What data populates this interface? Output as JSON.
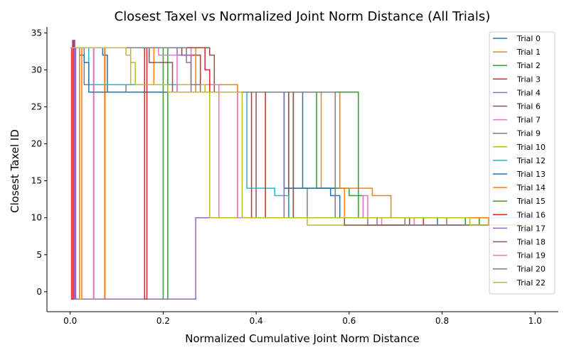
{
  "chart_data": {
    "type": "line",
    "title": "Closest Taxel vs Normalized Joint Norm Distance (All Trials)",
    "xlabel": "Normalized Cumulative Joint Norm Distance",
    "ylabel": "Closest Taxel ID",
    "xlim": [
      -0.05,
      1.05
    ],
    "ylim": [
      -2.7,
      35.8
    ],
    "xticks": [
      0.0,
      0.2,
      0.4,
      0.6,
      0.8,
      1.0
    ],
    "xtick_labels": [
      "0.0",
      "0.2",
      "0.4",
      "0.6",
      "0.8",
      "1.0"
    ],
    "yticks": [
      0,
      5,
      10,
      15,
      20,
      25,
      30,
      35
    ],
    "ytick_labels": [
      "0",
      "5",
      "10",
      "15",
      "20",
      "25",
      "30",
      "35"
    ],
    "grid": false,
    "legend_position": "top-right",
    "series": [
      {
        "name": "Trial 0",
        "color": "#1f77b4",
        "points": [
          [
            0,
            33
          ],
          [
            0.07,
            33
          ],
          [
            0.07,
            32
          ],
          [
            0.08,
            32
          ],
          [
            0.08,
            27
          ],
          [
            0.5,
            27
          ],
          [
            0.5,
            14
          ],
          [
            0.56,
            14
          ],
          [
            0.56,
            13
          ],
          [
            0.58,
            13
          ],
          [
            0.58,
            10
          ],
          [
            0.85,
            10
          ],
          [
            0.85,
            9
          ],
          [
            1.0,
            9
          ]
        ]
      },
      {
        "name": "Trial 1",
        "color": "#ff7f0e",
        "points": [
          [
            0,
            33
          ],
          [
            0.074,
            33
          ],
          [
            0.074,
            -1
          ],
          [
            0.075,
            -1
          ],
          [
            0.075,
            33
          ],
          [
            0.18,
            33
          ],
          [
            0.18,
            28
          ],
          [
            0.36,
            28
          ],
          [
            0.36,
            10
          ],
          [
            0.47,
            10
          ],
          [
            0.47,
            27
          ],
          [
            0.54,
            27
          ],
          [
            0.54,
            14
          ],
          [
            0.59,
            14
          ],
          [
            0.59,
            10
          ],
          [
            1.0,
            10
          ]
        ]
      },
      {
        "name": "Trial 2",
        "color": "#2ca02c",
        "points": [
          [
            0,
            33
          ],
          [
            0.2,
            33
          ],
          [
            0.2,
            -1
          ],
          [
            0.21,
            -1
          ],
          [
            0.21,
            27
          ],
          [
            0.53,
            27
          ],
          [
            0.53,
            14
          ],
          [
            0.6,
            14
          ],
          [
            0.6,
            13
          ],
          [
            0.63,
            13
          ],
          [
            0.63,
            10
          ],
          [
            0.88,
            10
          ],
          [
            0.88,
            9
          ],
          [
            1.0,
            9
          ]
        ]
      },
      {
        "name": "Trial 3",
        "color": "#d62728",
        "points": [
          [
            0,
            33
          ],
          [
            0.003,
            33
          ],
          [
            0.003,
            -1
          ],
          [
            0.006,
            -1
          ],
          [
            0.006,
            34
          ],
          [
            0.008,
            34
          ],
          [
            0.008,
            33
          ],
          [
            0.24,
            33
          ],
          [
            0.24,
            32
          ],
          [
            0.28,
            32
          ],
          [
            0.28,
            27
          ],
          [
            0.39,
            27
          ],
          [
            0.39,
            10
          ],
          [
            1.0,
            10
          ]
        ]
      },
      {
        "name": "Trial 4",
        "color": "#9467bd",
        "points": [
          [
            0,
            33
          ],
          [
            0.005,
            33
          ],
          [
            0.005,
            34
          ],
          [
            0.01,
            34
          ],
          [
            0.01,
            -1
          ],
          [
            0.27,
            -1
          ],
          [
            0.27,
            10
          ],
          [
            0.66,
            10
          ],
          [
            0.66,
            9
          ],
          [
            1.0,
            9
          ]
        ]
      },
      {
        "name": "Trial 6",
        "color": "#8c564b",
        "points": [
          [
            0,
            33
          ],
          [
            0.3,
            33
          ],
          [
            0.3,
            32
          ],
          [
            0.31,
            32
          ],
          [
            0.31,
            27
          ],
          [
            0.4,
            27
          ],
          [
            0.4,
            10
          ],
          [
            0.47,
            10
          ],
          [
            0.47,
            27
          ],
          [
            0.48,
            27
          ],
          [
            0.48,
            10
          ],
          [
            0.73,
            10
          ],
          [
            0.73,
            9
          ],
          [
            1.0,
            9
          ]
        ]
      },
      {
        "name": "Trial 7",
        "color": "#e377c2",
        "points": [
          [
            0,
            33
          ],
          [
            0.05,
            33
          ],
          [
            0.05,
            -1
          ],
          [
            0.051,
            -1
          ],
          [
            0.051,
            33
          ],
          [
            0.26,
            33
          ],
          [
            0.26,
            28
          ],
          [
            0.32,
            28
          ],
          [
            0.32,
            10
          ],
          [
            0.67,
            10
          ],
          [
            0.67,
            9
          ],
          [
            1.0,
            9
          ]
        ]
      },
      {
        "name": "Trial 9",
        "color": "#7f7f7f",
        "points": [
          [
            0,
            33
          ],
          [
            0.03,
            33
          ],
          [
            0.03,
            28
          ],
          [
            0.12,
            28
          ],
          [
            0.12,
            27
          ],
          [
            0.33,
            27
          ],
          [
            0.33,
            27
          ],
          [
            0.46,
            27
          ],
          [
            0.46,
            14
          ],
          [
            0.51,
            14
          ],
          [
            0.51,
            10
          ],
          [
            0.81,
            10
          ],
          [
            0.81,
            9
          ],
          [
            1.0,
            9
          ]
        ]
      },
      {
        "name": "Trial 10",
        "color": "#bcbd22",
        "points": [
          [
            0,
            33
          ],
          [
            0.13,
            33
          ],
          [
            0.13,
            28
          ],
          [
            0.29,
            28
          ],
          [
            0.29,
            27
          ],
          [
            0.3,
            27
          ],
          [
            0.3,
            10
          ],
          [
            0.51,
            10
          ],
          [
            0.51,
            9
          ],
          [
            1.0,
            9
          ]
        ]
      },
      {
        "name": "Trial 12",
        "color": "#17becf",
        "points": [
          [
            0,
            33
          ],
          [
            0.04,
            33
          ],
          [
            0.04,
            28
          ],
          [
            0.23,
            28
          ],
          [
            0.23,
            27
          ],
          [
            0.38,
            27
          ],
          [
            0.38,
            14
          ],
          [
            0.44,
            14
          ],
          [
            0.44,
            13
          ],
          [
            0.47,
            13
          ],
          [
            0.47,
            10
          ],
          [
            0.55,
            10
          ],
          [
            1.0,
            10
          ]
        ]
      },
      {
        "name": "Trial 13",
        "color": "#1f77b4",
        "points": [
          [
            0,
            33
          ],
          [
            0.02,
            33
          ],
          [
            0.02,
            32
          ],
          [
            0.03,
            32
          ],
          [
            0.03,
            31
          ],
          [
            0.04,
            31
          ],
          [
            0.04,
            27
          ],
          [
            0.46,
            27
          ],
          [
            0.46,
            14
          ],
          [
            0.57,
            14
          ],
          [
            0.57,
            10
          ],
          [
            0.79,
            10
          ],
          [
            0.79,
            9
          ],
          [
            1.0,
            9
          ]
        ]
      },
      {
        "name": "Trial 14",
        "color": "#ff7f0e",
        "points": [
          [
            0,
            33
          ],
          [
            0.02,
            33
          ],
          [
            0.02,
            -1
          ],
          [
            0.025,
            -1
          ],
          [
            0.025,
            33
          ],
          [
            0.27,
            33
          ],
          [
            0.27,
            27
          ],
          [
            0.58,
            27
          ],
          [
            0.58,
            14
          ],
          [
            0.65,
            14
          ],
          [
            0.65,
            13
          ],
          [
            0.69,
            13
          ],
          [
            0.69,
            10
          ],
          [
            0.9,
            10
          ],
          [
            0.9,
            9
          ],
          [
            1.0,
            9
          ]
        ]
      },
      {
        "name": "Trial 15",
        "color": "#2ca02c",
        "points": [
          [
            0,
            33
          ],
          [
            0.21,
            33
          ],
          [
            0.21,
            27
          ],
          [
            0.62,
            27
          ],
          [
            0.62,
            10
          ],
          [
            0.85,
            10
          ],
          [
            0.85,
            9
          ],
          [
            1.0,
            9
          ]
        ]
      },
      {
        "name": "Trial 16",
        "color": "#d62728",
        "points": [
          [
            0,
            33
          ],
          [
            0.16,
            33
          ],
          [
            0.16,
            -1
          ],
          [
            0.165,
            -1
          ],
          [
            0.165,
            33
          ],
          [
            0.29,
            33
          ],
          [
            0.29,
            30
          ],
          [
            0.3,
            30
          ],
          [
            0.3,
            27
          ],
          [
            0.42,
            27
          ],
          [
            0.42,
            10
          ],
          [
            0.76,
            10
          ],
          [
            0.76,
            9
          ],
          [
            1.0,
            9
          ]
        ]
      },
      {
        "name": "Trial 17",
        "color": "#9467bd",
        "points": [
          [
            0,
            33
          ],
          [
            0.008,
            33
          ],
          [
            0.008,
            -1
          ],
          [
            0.012,
            -1
          ],
          [
            0.012,
            33
          ],
          [
            0.23,
            33
          ],
          [
            0.23,
            32
          ],
          [
            0.26,
            32
          ],
          [
            0.26,
            27
          ],
          [
            0.46,
            27
          ],
          [
            0.46,
            10
          ],
          [
            0.64,
            10
          ],
          [
            0.64,
            9
          ],
          [
            1.0,
            9
          ]
        ]
      },
      {
        "name": "Trial 18",
        "color": "#8c564b",
        "points": [
          [
            0,
            33
          ],
          [
            0.17,
            33
          ],
          [
            0.17,
            31
          ],
          [
            0.22,
            31
          ],
          [
            0.22,
            27
          ],
          [
            0.48,
            27
          ],
          [
            0.48,
            10
          ],
          [
            0.59,
            10
          ],
          [
            0.59,
            9
          ],
          [
            1.0,
            9
          ]
        ]
      },
      {
        "name": "Trial 19",
        "color": "#e377c2",
        "points": [
          [
            0,
            33
          ],
          [
            0.19,
            33
          ],
          [
            0.19,
            32
          ],
          [
            0.23,
            32
          ],
          [
            0.23,
            27
          ],
          [
            0.36,
            27
          ],
          [
            0.36,
            10
          ],
          [
            0.63,
            10
          ],
          [
            0.63,
            13
          ],
          [
            0.64,
            13
          ],
          [
            0.64,
            10
          ],
          [
            0.74,
            10
          ],
          [
            0.74,
            9
          ],
          [
            1.0,
            9
          ]
        ]
      },
      {
        "name": "Trial 20",
        "color": "#7f7f7f",
        "points": [
          [
            0,
            33
          ],
          [
            0.25,
            33
          ],
          [
            0.25,
            31
          ],
          [
            0.26,
            31
          ],
          [
            0.26,
            28
          ],
          [
            0.28,
            28
          ],
          [
            0.28,
            27
          ],
          [
            0.57,
            27
          ],
          [
            0.57,
            10
          ],
          [
            0.72,
            10
          ],
          [
            0.72,
            9
          ],
          [
            1.0,
            9
          ]
        ]
      },
      {
        "name": "Trial 22",
        "color": "#bcbd22",
        "points": [
          [
            0,
            33
          ],
          [
            0.12,
            33
          ],
          [
            0.12,
            32
          ],
          [
            0.13,
            32
          ],
          [
            0.13,
            31
          ],
          [
            0.14,
            31
          ],
          [
            0.14,
            28
          ],
          [
            0.21,
            28
          ],
          [
            0.21,
            27
          ],
          [
            0.37,
            27
          ],
          [
            0.37,
            10
          ],
          [
            0.86,
            10
          ],
          [
            0.86,
            9
          ],
          [
            1.0,
            9
          ]
        ]
      }
    ]
  }
}
